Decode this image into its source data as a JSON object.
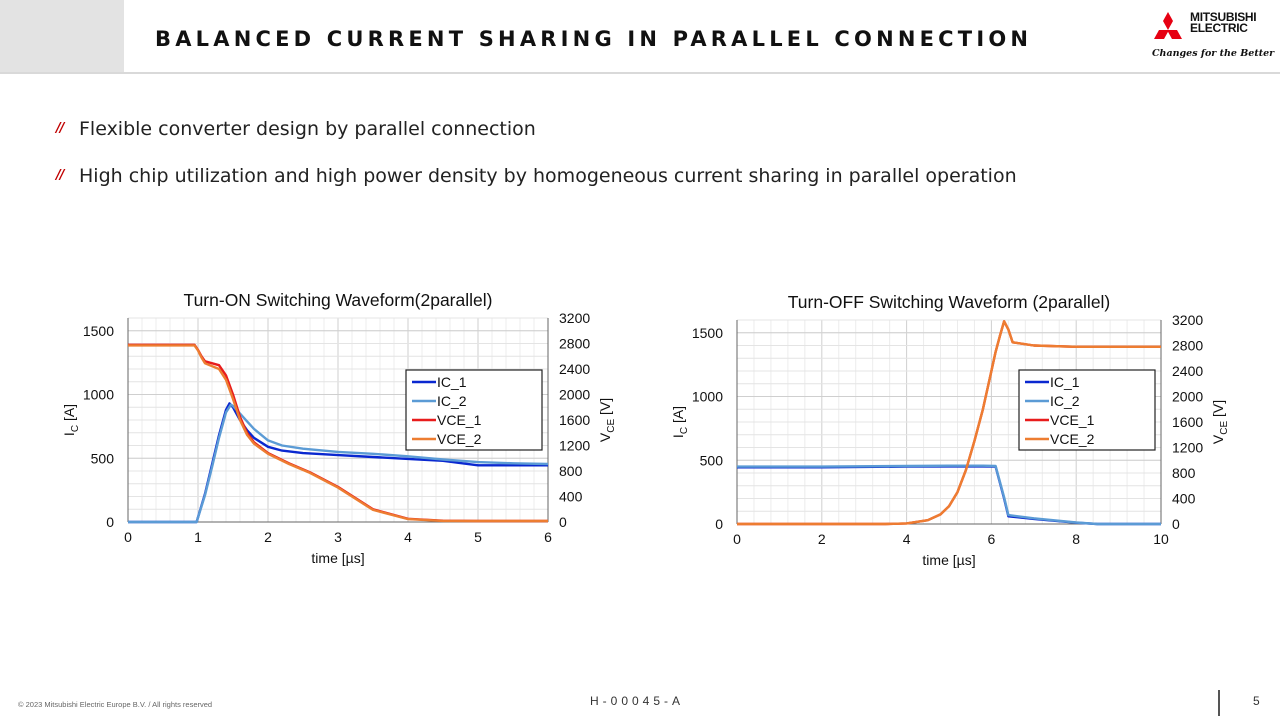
{
  "header": {
    "title": "BALANCED CURRENT SHARING IN PARALLEL CONNECTION",
    "logo": {
      "line1": "MITSUBISHI",
      "line2": "ELECTRIC",
      "tagline": "Changes for the Better",
      "color": "#e60012"
    }
  },
  "bullets": [
    {
      "mark": "//",
      "text": "Flexible converter design by parallel connection"
    },
    {
      "mark": "//",
      "text": "High chip utilization and high power density by homogeneous current sharing in parallel operation"
    }
  ],
  "chart_data": [
    {
      "type": "line",
      "title": "Turn-ON Switching Waveform(2parallel)",
      "xlabel": "time [µs]",
      "ylabel": {
        "main": "I",
        "sub": "C",
        "unit": " [A]"
      },
      "y2label": {
        "main": "V",
        "sub": "CE",
        "unit": " [V]"
      },
      "xlim": [
        0,
        6
      ],
      "ylim": [
        0,
        1600
      ],
      "y2lim": [
        0,
        3200
      ],
      "xticks": [
        0,
        1,
        2,
        3,
        4,
        5,
        6
      ],
      "yticks": [
        0,
        500,
        1000,
        1500
      ],
      "y2ticks": [
        0,
        400,
        800,
        1200,
        1600,
        2000,
        2400,
        2800,
        3200
      ],
      "grid": true,
      "legend_position": "right",
      "series": [
        {
          "name": "IC_1",
          "axis": "left",
          "color": "#0a28d0",
          "x": [
            0,
            0.98,
            1.1,
            1.2,
            1.3,
            1.4,
            1.45,
            1.5,
            1.6,
            1.7,
            1.8,
            2.0,
            2.2,
            2.5,
            3.0,
            3.5,
            4.0,
            4.5,
            5.0,
            5.5,
            6.0
          ],
          "y": [
            0,
            0,
            220,
            450,
            680,
            880,
            930,
            900,
            800,
            720,
            660,
            590,
            560,
            540,
            525,
            510,
            495,
            480,
            445,
            445,
            445
          ]
        },
        {
          "name": "IC_2",
          "axis": "left",
          "color": "#5b9bd5",
          "x": [
            0,
            0.98,
            1.1,
            1.2,
            1.3,
            1.4,
            1.47,
            1.5,
            1.6,
            1.7,
            1.8,
            2.0,
            2.2,
            2.5,
            3.0,
            3.5,
            4.0,
            4.5,
            5.0,
            5.5,
            6.0
          ],
          "y": [
            0,
            0,
            210,
            430,
            660,
            860,
            920,
            910,
            850,
            790,
            730,
            640,
            600,
            575,
            550,
            535,
            515,
            490,
            470,
            460,
            455
          ]
        },
        {
          "name": "VCE_1",
          "axis": "right",
          "color": "#e81c1c",
          "x": [
            0,
            0.95,
            1.0,
            1.05,
            1.1,
            1.3,
            1.4,
            1.5,
            1.6,
            1.7,
            1.8,
            2.0,
            2.3,
            2.6,
            3.0,
            3.5,
            4.0,
            4.5,
            5.0,
            5.5,
            6.0
          ],
          "y": [
            2780,
            2780,
            2700,
            2600,
            2520,
            2460,
            2300,
            2000,
            1650,
            1400,
            1250,
            1080,
            920,
            780,
            550,
            200,
            50,
            20,
            15,
            15,
            15
          ]
        },
        {
          "name": "VCE_2",
          "axis": "right",
          "color": "#ed7d31",
          "x": [
            0,
            0.95,
            1.0,
            1.05,
            1.1,
            1.3,
            1.4,
            1.5,
            1.6,
            1.7,
            1.8,
            2.0,
            2.3,
            2.6,
            3.0,
            3.5,
            4.0,
            4.5,
            5.0,
            5.5,
            6.0
          ],
          "y": [
            2770,
            2770,
            2690,
            2580,
            2490,
            2400,
            2230,
            1930,
            1600,
            1370,
            1230,
            1070,
            910,
            770,
            540,
            190,
            45,
            18,
            15,
            15,
            15
          ]
        }
      ]
    },
    {
      "type": "line",
      "title": "Turn-OFF Switching Waveform (2parallel)",
      "xlabel": "time [µs]",
      "ylabel": {
        "main": "I",
        "sub": "C",
        "unit": " [A]"
      },
      "y2label": {
        "main": "V",
        "sub": "CE",
        "unit": " [V]"
      },
      "xlim": [
        0,
        10
      ],
      "ylim": [
        0,
        1600
      ],
      "y2lim": [
        0,
        3200
      ],
      "xticks": [
        0,
        2,
        4,
        6,
        8,
        10
      ],
      "yticks": [
        0,
        500,
        1000,
        1500
      ],
      "y2ticks": [
        0,
        400,
        800,
        1200,
        1600,
        2000,
        2400,
        2800,
        3200
      ],
      "grid": true,
      "legend_position": "right",
      "series": [
        {
          "name": "IC_1",
          "axis": "left",
          "color": "#0a28d0",
          "x": [
            0,
            2,
            4,
            5,
            5.8,
            6.1,
            6.3,
            6.4,
            7,
            8,
            8.5,
            9,
            10
          ],
          "y": [
            445,
            445,
            450,
            452,
            452,
            450,
            200,
            60,
            40,
            10,
            0,
            0,
            0
          ]
        },
        {
          "name": "IC_2",
          "axis": "left",
          "color": "#5b9bd5",
          "x": [
            0,
            2,
            4,
            5,
            5.8,
            6.1,
            6.3,
            6.4,
            7,
            8,
            8.5,
            9,
            10
          ],
          "y": [
            450,
            450,
            455,
            457,
            457,
            455,
            210,
            70,
            45,
            12,
            0,
            0,
            0
          ]
        },
        {
          "name": "VCE_1",
          "axis": "right",
          "color": "#e81c1c",
          "x": [
            0,
            3.5,
            4,
            4.5,
            4.8,
            5.0,
            5.2,
            5.4,
            5.6,
            5.8,
            6.0,
            6.1,
            6.2,
            6.3,
            6.4,
            6.5,
            7,
            8,
            9,
            10
          ],
          "y": [
            0,
            0,
            10,
            60,
            150,
            280,
            500,
            850,
            1300,
            1800,
            2400,
            2700,
            2950,
            3180,
            3050,
            2850,
            2800,
            2780,
            2780,
            2780
          ]
        },
        {
          "name": "VCE_2",
          "axis": "right",
          "color": "#ed7d31",
          "x": [
            0,
            3.5,
            4,
            4.5,
            4.8,
            5.0,
            5.2,
            5.4,
            5.6,
            5.8,
            6.0,
            6.1,
            6.2,
            6.3,
            6.4,
            6.5,
            7,
            8,
            9,
            10
          ],
          "y": [
            0,
            0,
            10,
            60,
            150,
            280,
            500,
            850,
            1300,
            1800,
            2400,
            2700,
            2950,
            3180,
            3050,
            2850,
            2800,
            2780,
            2780,
            2780
          ]
        }
      ]
    }
  ],
  "footer": {
    "copyright": "© 2023 Mitsubishi Electric Europe B.V. / All rights reserved",
    "code": "H-00045-A",
    "page": "5"
  }
}
